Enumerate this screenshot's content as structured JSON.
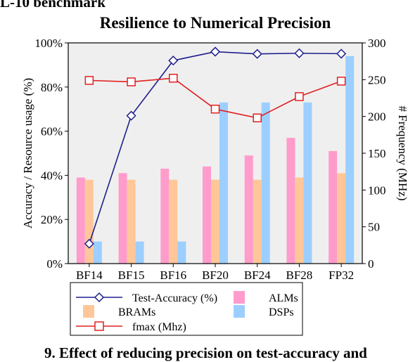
{
  "top_fragment": "L-10 benchmark",
  "bottom_fragment": "9. Effect of reducing precision on test-accuracy and",
  "chart_data": {
    "type": "bar",
    "title": "Resilience to Numerical Precision",
    "ylabel": "Accuracy / Resource usage (%)",
    "y2label": "# Frequency (MHz)",
    "categories": [
      "BF14",
      "BF15",
      "BF16",
      "BF20",
      "BF24",
      "BF28",
      "FP32"
    ],
    "ylim": [
      0,
      100
    ],
    "y2lim": [
      0,
      300
    ],
    "yticks": [
      "0%",
      "20%",
      "40%",
      "60%",
      "80%",
      "100%"
    ],
    "y2ticks": [
      "0",
      "50",
      "100",
      "150",
      "200",
      "250",
      "300"
    ],
    "grid": false,
    "bar_series": [
      {
        "name": "ALMs",
        "color": "#ff9ccb",
        "values": [
          39,
          41,
          43,
          44,
          49,
          57,
          51
        ]
      },
      {
        "name": "BRAMs",
        "color": "#ffc799",
        "values": [
          38,
          38,
          38,
          38,
          38,
          39,
          41
        ]
      },
      {
        "name": "DSPs",
        "color": "#9ccfff",
        "values": [
          10,
          10,
          10,
          73,
          73,
          73,
          94
        ]
      }
    ],
    "line_series": [
      {
        "name": "Test-Accuracy (%)",
        "axis": "left",
        "color": "#1f1f8f",
        "marker": "diamond",
        "values": [
          9,
          67,
          92,
          96,
          95,
          95.3,
          95.1
        ]
      },
      {
        "name": "fmax (Mhz)",
        "axis": "right",
        "color": "#e02020",
        "marker": "square",
        "values": [
          249,
          247,
          252,
          210,
          198,
          227,
          248
        ]
      }
    ],
    "legend": {
      "placement": "bottom",
      "entries": [
        {
          "label": "Test-Accuracy (%)",
          "kind": "line",
          "ref": "Test-Accuracy (%)"
        },
        {
          "label": "ALMs",
          "kind": "bar",
          "ref": "ALMs"
        },
        {
          "label": "BRAMs",
          "kind": "bar",
          "ref": "BRAMs"
        },
        {
          "label": "DSPs",
          "kind": "bar",
          "ref": "DSPs"
        },
        {
          "label": "fmax (Mhz)",
          "kind": "line",
          "ref": "fmax (Mhz)"
        }
      ]
    }
  }
}
